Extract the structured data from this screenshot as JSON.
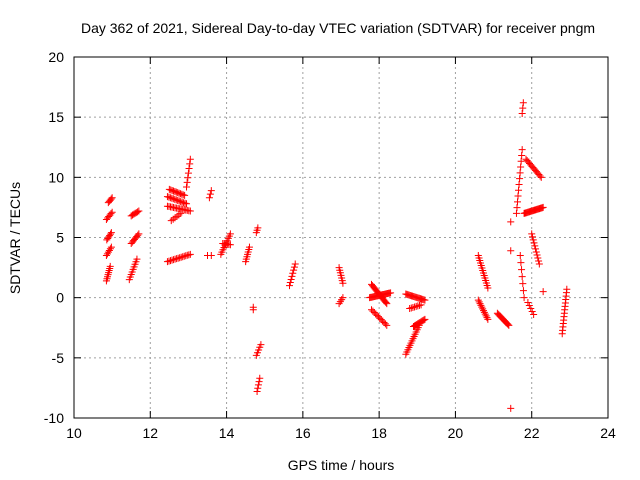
{
  "chart_data": {
    "type": "scatter",
    "title": "Day 362 of 2021, Sidereal Day-to-day VTEC variation (SDTVAR) for receiver pngm",
    "xlabel": "GPS time / hours",
    "ylabel": "SDTVAR / TECUs",
    "xlim": [
      10,
      24
    ],
    "ylim": [
      -10,
      20
    ],
    "xticks": [
      10,
      12,
      14,
      16,
      18,
      20,
      22,
      24
    ],
    "yticks": [
      -10,
      -5,
      0,
      5,
      10,
      15,
      20
    ],
    "xtick_labels": [
      "10",
      "12",
      "14",
      "16",
      "18",
      "20",
      "22",
      "24"
    ],
    "ytick_labels": [
      "-10",
      "-5",
      "0",
      "5",
      "10",
      "15",
      "20"
    ],
    "grid": true,
    "marker": "+",
    "marker_color": "#ff0000",
    "series": [
      {
        "name": "SDTVAR",
        "segments": [
          {
            "x0": 10.85,
            "y0": 1.4,
            "x1": 10.95,
            "y1": 2.6,
            "n": 8
          },
          {
            "x0": 10.85,
            "y0": 3.5,
            "x1": 10.98,
            "y1": 4.2,
            "n": 6
          },
          {
            "x0": 10.86,
            "y0": 4.8,
            "x1": 10.98,
            "y1": 5.4,
            "n": 6
          },
          {
            "x0": 10.85,
            "y0": 6.5,
            "x1": 11.0,
            "y1": 7.1,
            "n": 6
          },
          {
            "x0": 10.9,
            "y0": 7.9,
            "x1": 11.0,
            "y1": 8.3,
            "n": 5
          },
          {
            "x0": 11.45,
            "y0": 1.5,
            "x1": 11.65,
            "y1": 3.2,
            "n": 9
          },
          {
            "x0": 11.5,
            "y0": 4.5,
            "x1": 11.7,
            "y1": 5.3,
            "n": 8
          },
          {
            "x0": 11.5,
            "y0": 6.8,
            "x1": 11.7,
            "y1": 7.2,
            "n": 7
          },
          {
            "x0": 12.45,
            "y0": 3.0,
            "x1": 13.05,
            "y1": 3.6,
            "n": 16
          },
          {
            "x0": 12.45,
            "y0": 7.6,
            "x1": 13.05,
            "y1": 7.2,
            "n": 16
          },
          {
            "x0": 12.45,
            "y0": 8.4,
            "x1": 12.95,
            "y1": 7.8,
            "n": 14
          },
          {
            "x0": 12.5,
            "y0": 9.0,
            "x1": 12.9,
            "y1": 8.5,
            "n": 12
          },
          {
            "x0": 12.55,
            "y0": 6.4,
            "x1": 12.8,
            "y1": 7.0,
            "n": 6
          },
          {
            "x0": 12.95,
            "y0": 9.2,
            "x1": 13.05,
            "y1": 11.5,
            "n": 7
          },
          {
            "x0": 13.55,
            "y0": 8.3,
            "x1": 13.6,
            "y1": 8.9,
            "n": 3
          },
          {
            "x0": 13.5,
            "y0": 3.5,
            "x1": 13.6,
            "y1": 3.5,
            "n": 2
          },
          {
            "x0": 13.85,
            "y0": 3.6,
            "x1": 14.1,
            "y1": 5.3,
            "n": 10
          },
          {
            "x0": 13.9,
            "y0": 4.5,
            "x1": 14.1,
            "y1": 4.4,
            "n": 6
          },
          {
            "x0": 14.5,
            "y0": 3.0,
            "x1": 14.6,
            "y1": 4.2,
            "n": 7
          },
          {
            "x0": 14.7,
            "y0": -0.8,
            "x1": 14.7,
            "y1": -1.0,
            "n": 2
          },
          {
            "x0": 14.78,
            "y0": 5.4,
            "x1": 14.82,
            "y1": 5.8,
            "n": 3
          },
          {
            "x0": 14.78,
            "y0": -4.8,
            "x1": 14.9,
            "y1": -3.9,
            "n": 5
          },
          {
            "x0": 14.8,
            "y0": -7.8,
            "x1": 14.87,
            "y1": -6.7,
            "n": 5
          },
          {
            "x0": 15.65,
            "y0": 1.0,
            "x1": 15.8,
            "y1": 2.8,
            "n": 8
          },
          {
            "x0": 16.95,
            "y0": -0.5,
            "x1": 17.05,
            "y1": 0.0,
            "n": 4
          },
          {
            "x0": 16.95,
            "y0": 2.5,
            "x1": 17.05,
            "y1": 1.2,
            "n": 7
          },
          {
            "x0": 17.75,
            "y0": 0.0,
            "x1": 18.3,
            "y1": 0.4,
            "n": 22
          },
          {
            "x0": 17.8,
            "y0": 1.1,
            "x1": 18.2,
            "y1": -0.5,
            "n": 18
          },
          {
            "x0": 17.8,
            "y0": -1.0,
            "x1": 18.2,
            "y1": -2.3,
            "n": 12
          },
          {
            "x0": 18.7,
            "y0": -4.7,
            "x1": 19.05,
            "y1": -2.3,
            "n": 14
          },
          {
            "x0": 18.9,
            "y0": -2.4,
            "x1": 19.2,
            "y1": -1.8,
            "n": 12
          },
          {
            "x0": 18.7,
            "y0": 0.3,
            "x1": 19.2,
            "y1": -0.2,
            "n": 18
          },
          {
            "x0": 18.8,
            "y0": -0.9,
            "x1": 19.1,
            "y1": -0.6,
            "n": 8
          },
          {
            "x0": 20.6,
            "y0": 3.5,
            "x1": 20.85,
            "y1": 0.8,
            "n": 14
          },
          {
            "x0": 20.6,
            "y0": -0.2,
            "x1": 20.85,
            "y1": -1.8,
            "n": 12
          },
          {
            "x0": 21.1,
            "y0": -1.3,
            "x1": 21.4,
            "y1": -2.3,
            "n": 14
          },
          {
            "x0": 21.45,
            "y0": 6.3,
            "x1": 21.45,
            "y1": 6.3,
            "n": 1
          },
          {
            "x0": 21.45,
            "y0": 3.9,
            "x1": 21.45,
            "y1": 3.9,
            "n": 1
          },
          {
            "x0": 21.45,
            "y0": -9.2,
            "x1": 21.45,
            "y1": -9.2,
            "n": 1
          },
          {
            "x0": 21.6,
            "y0": 7.0,
            "x1": 21.75,
            "y1": 12.3,
            "n": 12
          },
          {
            "x0": 21.75,
            "y0": 15.3,
            "x1": 21.78,
            "y1": 16.2,
            "n": 3
          },
          {
            "x0": 21.7,
            "y0": 3.5,
            "x1": 21.8,
            "y1": 0.0,
            "n": 7
          },
          {
            "x0": 21.8,
            "y0": 7.0,
            "x1": 22.3,
            "y1": 7.5,
            "n": 22
          },
          {
            "x0": 21.85,
            "y0": 11.5,
            "x1": 22.25,
            "y1": 10.0,
            "n": 14
          },
          {
            "x0": 21.9,
            "y0": -0.4,
            "x1": 22.05,
            "y1": -1.4,
            "n": 5
          },
          {
            "x0": 22.0,
            "y0": 5.3,
            "x1": 22.2,
            "y1": 2.8,
            "n": 11
          },
          {
            "x0": 22.3,
            "y0": 0.5,
            "x1": 22.3,
            "y1": 0.5,
            "n": 1
          },
          {
            "x0": 22.8,
            "y0": -3.0,
            "x1": 22.92,
            "y1": 0.7,
            "n": 14
          }
        ]
      }
    ]
  }
}
